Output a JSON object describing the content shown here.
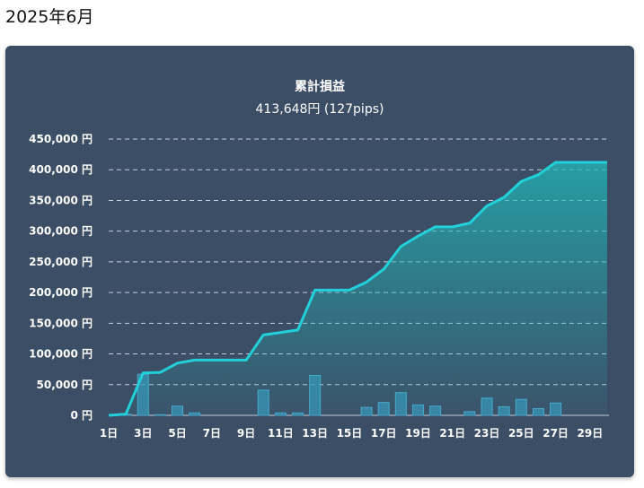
{
  "page": {
    "title": "2025年6月"
  },
  "chart_data": {
    "type": "line",
    "title": "累計損益",
    "subtitle": "413,648円 (127pips)",
    "y_unit": " 円",
    "x_unit": "日",
    "ylim": [
      0,
      450000
    ],
    "y_ticks": [
      0,
      50000,
      100000,
      150000,
      200000,
      250000,
      300000,
      350000,
      400000,
      450000
    ],
    "x": [
      1,
      2,
      3,
      4,
      5,
      6,
      7,
      8,
      9,
      10,
      11,
      12,
      13,
      14,
      15,
      16,
      17,
      18,
      19,
      20,
      21,
      22,
      23,
      24,
      25,
      26,
      27,
      28,
      29,
      30
    ],
    "x_tick_labels": [
      1,
      3,
      5,
      7,
      9,
      11,
      13,
      15,
      17,
      19,
      21,
      23,
      25,
      27,
      29
    ],
    "series": [
      {
        "type": "line",
        "values": [
          0,
          2000,
          69000,
          70000,
          85000,
          90000,
          90000,
          90000,
          90000,
          131000,
          135000,
          139000,
          204000,
          204000,
          204000,
          217000,
          238000,
          275000,
          292000,
          307000,
          307000,
          313000,
          341000,
          355000,
          381000,
          392000,
          412000,
          412000,
          412000,
          412000
        ]
      },
      {
        "type": "bar",
        "values": [
          0,
          2000,
          67000,
          1000,
          15000,
          4000,
          0,
          0,
          0,
          41000,
          4000,
          4000,
          65000,
          0,
          0,
          13000,
          21000,
          37000,
          17000,
          15000,
          0,
          6000,
          28000,
          14000,
          26000,
          11000,
          20000,
          0,
          0,
          0
        ]
      }
    ],
    "grid": true,
    "colors": {
      "line": "#22d0da",
      "bar": "#3a93b8",
      "fill": "#1fb8b8"
    }
  }
}
